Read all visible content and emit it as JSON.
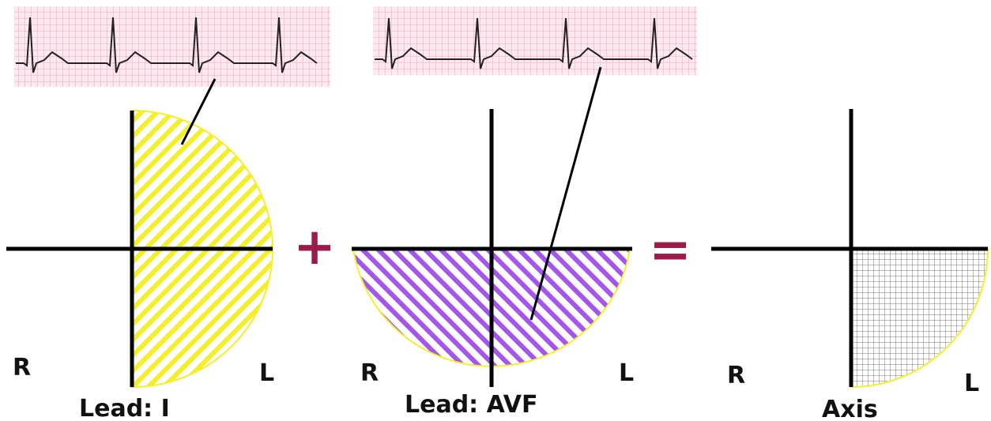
{
  "panels": [
    {
      "left_label": "R",
      "right_label": "L",
      "caption": "Lead: I"
    },
    {
      "left_label": "R",
      "right_label": "L",
      "caption": "Lead: AVF"
    },
    {
      "left_label": "R",
      "right_label": "L",
      "caption": "Axis"
    }
  ],
  "operators": [
    "+",
    "="
  ]
}
